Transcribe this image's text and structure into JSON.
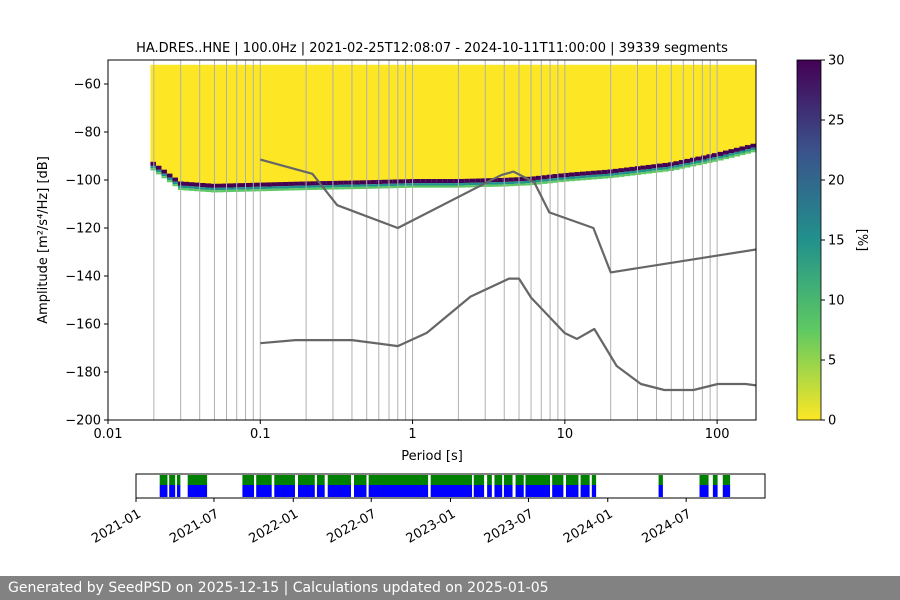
{
  "chart_data": [
    {
      "type": "heatmap",
      "title": "HA.DRES..HNE | 100.0Hz | 2021-02-25T12:08:07 - 2024-10-11T11:00:00 | 39339 segments",
      "xlabel": "Period [s]",
      "ylabel": "Amplitude [m²/s⁴/Hz] [dB]",
      "xscale": "log",
      "xlim": [
        0.01,
        180
      ],
      "ylim": [
        -200,
        -50
      ],
      "x_tick_values": [
        0.01,
        0.1,
        1,
        10,
        100
      ],
      "x_tick_labels": [
        "0.01",
        "0.1",
        "1",
        "10",
        "100"
      ],
      "y_tick_values": [
        -60,
        -80,
        -100,
        -120,
        -140,
        -160,
        -180,
        -200
      ],
      "y_tick_labels": [
        "−60",
        "−80",
        "−100",
        "−120",
        "−140",
        "−160",
        "−180",
        "−200"
      ],
      "grid": "vertical lines at period bins",
      "colorbar": {
        "label": "[%]",
        "range": [
          0,
          30
        ],
        "tick_values": [
          0,
          5,
          10,
          15,
          20,
          25,
          30
        ],
        "tick_labels": [
          "0",
          "5",
          "10",
          "15",
          "20",
          "25",
          "30"
        ],
        "colormap": [
          "#fde725",
          "#5ec962",
          "#21918c",
          "#3b528b",
          "#440154"
        ]
      },
      "psd_mode_curve": {
        "period": [
          0.019,
          0.03,
          0.05,
          0.1,
          0.2,
          0.5,
          1,
          2,
          4,
          6,
          10,
          20,
          50,
          100,
          180
        ],
        "db": [
          -93,
          -102,
          -103,
          -102.5,
          -102,
          -101.5,
          -101,
          -101,
          -100.5,
          -100,
          -98.5,
          -97,
          -94,
          -90,
          -86
        ]
      },
      "series": [
        {
          "name": "NHNM",
          "color": "#666666",
          "x": [
            0.1,
            0.22,
            0.32,
            0.8,
            3.8,
            4.6,
            6.3,
            7.9,
            15.4,
            20,
            354.8
          ],
          "y": [
            -91.5,
            -97.4,
            -110.5,
            -120,
            -98,
            -96.5,
            -101,
            -113.5,
            -120,
            -138.5,
            -126
          ]
        },
        {
          "name": "NLNM",
          "color": "#666666",
          "x": [
            0.1,
            0.17,
            0.4,
            0.8,
            1.24,
            2.4,
            4.3,
            5,
            6,
            10,
            12,
            15.6,
            21.9,
            31.6,
            45,
            70,
            101,
            154,
            180
          ],
          "y": [
            -168,
            -166.7,
            -166.7,
            -169.2,
            -163.7,
            -148.6,
            -141.1,
            -141.1,
            -149,
            -163.8,
            -166.2,
            -162.1,
            -177.5,
            -185,
            -187.5,
            -187.5,
            -185,
            -185,
            -185.6
          ]
        }
      ]
    },
    {
      "type": "timeline",
      "date_range": [
        "2021-01-01",
        "2024-12-31"
      ],
      "tick_values": [
        "2021-01",
        "2021-07",
        "2022-01",
        "2022-07",
        "2023-01",
        "2023-07",
        "2024-01",
        "2024-07"
      ],
      "tick_labels": [
        "2021-01",
        "2021-07",
        "2022-01",
        "2022-07",
        "2023-01",
        "2023-07",
        "2024-01",
        "2024-07"
      ],
      "available_color": "#0000ff",
      "used_color": "#008000",
      "data_intervals": [
        [
          "2021-02-25",
          "2021-03-15"
        ],
        [
          "2021-03-19",
          "2021-04-02"
        ],
        [
          "2021-04-06",
          "2021-04-14"
        ],
        [
          "2021-05-01",
          "2021-06-15"
        ],
        [
          "2021-09-05",
          "2021-10-02"
        ],
        [
          "2021-10-07",
          "2021-11-12"
        ],
        [
          "2021-11-18",
          "2022-01-05"
        ],
        [
          "2022-01-12",
          "2022-02-20"
        ],
        [
          "2022-02-25",
          "2022-03-15"
        ],
        [
          "2022-03-22",
          "2022-05-15"
        ],
        [
          "2022-05-22",
          "2022-06-20"
        ],
        [
          "2022-06-25",
          "2022-11-10"
        ],
        [
          "2022-11-16",
          "2023-02-20"
        ],
        [
          "2023-02-24",
          "2023-03-20"
        ],
        [
          "2023-03-27",
          "2023-04-07"
        ],
        [
          "2023-04-13",
          "2023-05-01"
        ],
        [
          "2023-05-05",
          "2023-05-25"
        ],
        [
          "2023-06-01",
          "2023-06-20"
        ],
        [
          "2023-06-24",
          "2023-08-20"
        ],
        [
          "2023-08-25",
          "2023-09-20"
        ],
        [
          "2023-09-26",
          "2023-10-25"
        ],
        [
          "2023-10-30",
          "2023-11-20"
        ],
        [
          "2023-11-25",
          "2023-12-05"
        ],
        [
          "2024-04-28",
          "2024-05-08"
        ],
        [
          "2024-08-01",
          "2024-08-22"
        ],
        [
          "2024-09-01",
          "2024-09-12"
        ],
        [
          "2024-09-24",
          "2024-10-11"
        ]
      ]
    }
  ],
  "footer": {
    "text": "Generated by SeedPSD on 2025-12-15 | Calculations updated on 2025-01-05"
  }
}
